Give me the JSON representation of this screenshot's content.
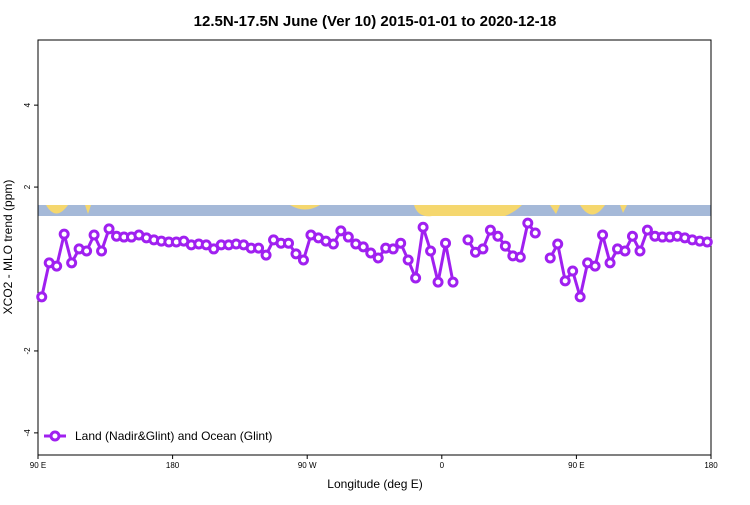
{
  "chart_data": {
    "type": "line",
    "title": "12.5N-17.5N June (Ver 10)   2015-01-01 to 2020-12-18",
    "x_label": "Longitude (deg E)",
    "y_label": "XCO2 - MLO trend (ppm)",
    "xlim": [
      90,
      540
    ],
    "ylim": [
      -4.54,
      5.59
    ],
    "xticks": [
      {
        "value": 90,
        "label": "90 E"
      },
      180,
      {
        "value": 270,
        "label": "90 W"
      },
      {
        "value": 360,
        "label": "0"
      },
      {
        "value": 450,
        "label": "90 E"
      },
      {
        "value": 540,
        "label": "180"
      }
    ],
    "yticks": [
      -4,
      -2,
      2,
      4
    ],
    "legend_position": "bottom-left",
    "x": [
      92.5,
      97.5,
      102.5,
      107.5,
      112.5,
      117.5,
      122.5,
      127.5,
      132.5,
      137.5,
      142.5,
      147.5,
      152.5,
      157.5,
      162.5,
      167.5,
      172.5,
      177.5,
      182.5,
      187.5,
      192.5,
      197.5,
      202.5,
      207.5,
      212.5,
      217.5,
      222.5,
      227.5,
      232.5,
      237.5,
      242.5,
      247.5,
      252.5,
      257.5,
      262.5,
      267.5,
      272.5,
      277.5,
      282.5,
      287.5,
      292.5,
      297.5,
      302.5,
      307.5,
      312.5,
      317.5,
      322.5,
      327.5,
      332.5,
      337.5,
      342.5,
      347.5,
      352.5,
      357.5,
      362.5,
      367.5,
      372.5,
      377.5,
      382.5,
      387.5,
      392.5,
      397.5,
      402.5,
      407.5,
      412.5,
      417.5,
      422.5,
      427.5,
      432.5,
      437.5,
      442.5,
      447.5,
      452.5,
      457.5,
      462.5,
      467.5,
      472.5,
      477.5,
      482.5,
      487.5,
      492.5,
      497.5,
      502.5,
      507.5,
      512.5,
      517.5,
      522.5,
      527.5,
      532.5,
      537.5
    ],
    "series": [
      {
        "name": "Land (Nadir&Glint) and Ocean (Glint)",
        "color": "#a020f0",
        "values": [
          -0.68,
          0.15,
          0.07,
          0.85,
          0.15,
          0.49,
          0.44,
          0.83,
          0.44,
          0.98,
          0.8,
          0.78,
          0.78,
          0.83,
          0.76,
          0.71,
          0.68,
          0.66,
          0.66,
          0.68,
          0.59,
          0.61,
          0.59,
          0.49,
          0.59,
          0.59,
          0.61,
          0.59,
          0.51,
          0.51,
          0.34,
          0.71,
          0.63,
          0.63,
          0.37,
          0.22,
          0.83,
          0.76,
          0.68,
          0.61,
          0.93,
          0.78,
          0.61,
          0.54,
          0.39,
          0.27,
          0.51,
          0.49,
          0.63,
          0.22,
          -0.22,
          1.02,
          0.44,
          -0.32,
          0.63,
          -0.32,
          null,
          0.71,
          0.41,
          0.49,
          0.95,
          0.8,
          0.56,
          0.32,
          0.29,
          1.12,
          0.88,
          null,
          0.27,
          0.61,
          -0.29,
          -0.05,
          -0.68,
          0.15,
          0.07,
          0.83,
          0.15,
          0.49,
          0.44,
          0.8,
          0.44,
          0.95,
          0.8,
          0.78,
          0.78,
          0.8,
          0.76,
          0.71,
          0.68,
          0.66
        ]
      }
    ]
  }
}
